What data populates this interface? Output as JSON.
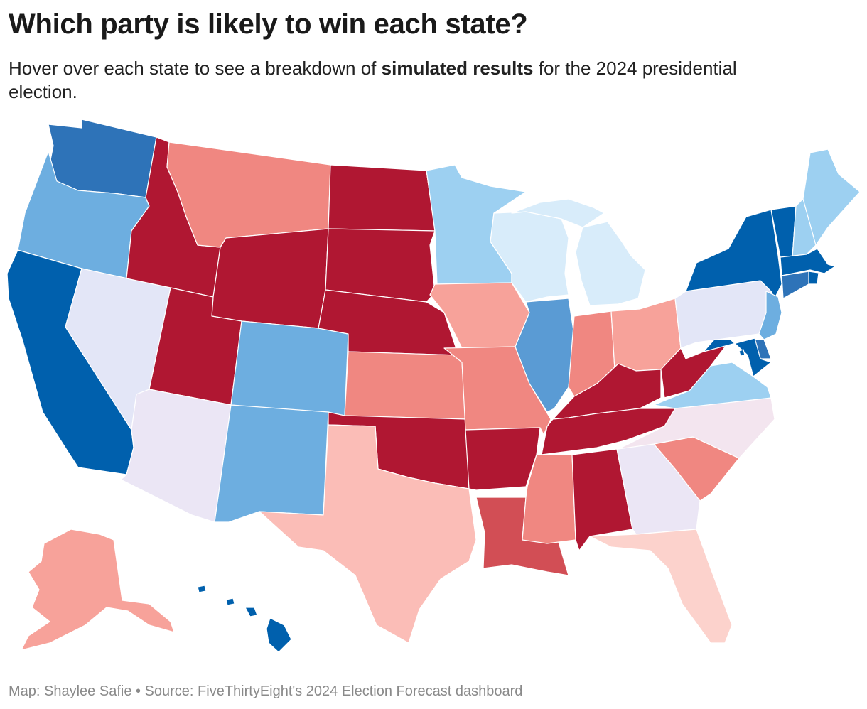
{
  "header": {
    "title": "Which party is likely to win each state?",
    "subtitle_pre": "Hover over each state to see a breakdown of ",
    "subtitle_bold": "simulated results",
    "subtitle_post": " for the 2024 presidential election."
  },
  "footer": {
    "credit": "Map: Shaylee Safie • Source: FiveThirtyEight's 2024 Election Forecast dashboard"
  },
  "palette": {
    "solid_d": "#0060ad",
    "likely_d": "#2e73b8",
    "lean_d2": "#5a9bd4",
    "lean_d": "#6daee0",
    "tilt_d": "#9dd0f1",
    "weak_d": "#d8ecfa",
    "tossup_blue": "#e3e6f7",
    "tossup": "#ebe6f5",
    "tossup_pink": "#f3e5ef",
    "weak_r": "#fcd2cc",
    "tilt_r": "#fbbdb7",
    "lean_r": "#f7a29a",
    "likely_r": "#f08781",
    "strong_r": "#d24e55",
    "solid_r": "#b01732"
  },
  "states": [
    {
      "code": "WA",
      "name": "Washington",
      "category": "likely_d"
    },
    {
      "code": "OR",
      "name": "Oregon",
      "category": "lean_d"
    },
    {
      "code": "CA",
      "name": "California",
      "category": "solid_d"
    },
    {
      "code": "NV",
      "name": "Nevada",
      "category": "tossup_blue"
    },
    {
      "code": "ID",
      "name": "Idaho",
      "category": "solid_r"
    },
    {
      "code": "MT",
      "name": "Montana",
      "category": "likely_r"
    },
    {
      "code": "WY",
      "name": "Wyoming",
      "category": "solid_r"
    },
    {
      "code": "UT",
      "name": "Utah",
      "category": "solid_r"
    },
    {
      "code": "AZ",
      "name": "Arizona",
      "category": "tossup"
    },
    {
      "code": "CO",
      "name": "Colorado",
      "category": "lean_d"
    },
    {
      "code": "NM",
      "name": "New Mexico",
      "category": "lean_d"
    },
    {
      "code": "ND",
      "name": "North Dakota",
      "category": "solid_r"
    },
    {
      "code": "SD",
      "name": "South Dakota",
      "category": "solid_r"
    },
    {
      "code": "NE",
      "name": "Nebraska",
      "category": "solid_r"
    },
    {
      "code": "KS",
      "name": "Kansas",
      "category": "likely_r"
    },
    {
      "code": "OK",
      "name": "Oklahoma",
      "category": "solid_r"
    },
    {
      "code": "TX",
      "name": "Texas",
      "category": "tilt_r"
    },
    {
      "code": "MN",
      "name": "Minnesota",
      "category": "tilt_d"
    },
    {
      "code": "IA",
      "name": "Iowa",
      "category": "lean_r"
    },
    {
      "code": "MO",
      "name": "Missouri",
      "category": "likely_r"
    },
    {
      "code": "AR",
      "name": "Arkansas",
      "category": "solid_r"
    },
    {
      "code": "LA",
      "name": "Louisiana",
      "category": "strong_r"
    },
    {
      "code": "WI",
      "name": "Wisconsin",
      "category": "weak_d"
    },
    {
      "code": "IL",
      "name": "Illinois",
      "category": "lean_d2"
    },
    {
      "code": "MI",
      "name": "Michigan",
      "category": "weak_d"
    },
    {
      "code": "IN",
      "name": "Indiana",
      "category": "likely_r"
    },
    {
      "code": "OH",
      "name": "Ohio",
      "category": "lean_r"
    },
    {
      "code": "KY",
      "name": "Kentucky",
      "category": "solid_r"
    },
    {
      "code": "TN",
      "name": "Tennessee",
      "category": "solid_r"
    },
    {
      "code": "MS",
      "name": "Mississippi",
      "category": "likely_r"
    },
    {
      "code": "AL",
      "name": "Alabama",
      "category": "solid_r"
    },
    {
      "code": "GA",
      "name": "Georgia",
      "category": "tossup"
    },
    {
      "code": "FL",
      "name": "Florida",
      "category": "weak_r"
    },
    {
      "code": "SC",
      "name": "South Carolina",
      "category": "likely_r"
    },
    {
      "code": "NC",
      "name": "North Carolina",
      "category": "tossup_pink"
    },
    {
      "code": "VA",
      "name": "Virginia",
      "category": "tilt_d"
    },
    {
      "code": "WV",
      "name": "West Virginia",
      "category": "solid_r"
    },
    {
      "code": "PA",
      "name": "Pennsylvania",
      "category": "tossup_blue"
    },
    {
      "code": "NY",
      "name": "New York",
      "category": "solid_d"
    },
    {
      "code": "VT",
      "name": "Vermont",
      "category": "solid_d"
    },
    {
      "code": "NH",
      "name": "New Hampshire",
      "category": "tilt_d"
    },
    {
      "code": "ME",
      "name": "Maine",
      "category": "tilt_d"
    },
    {
      "code": "MA",
      "name": "Massachusetts",
      "category": "solid_d"
    },
    {
      "code": "RI",
      "name": "Rhode Island",
      "category": "solid_d"
    },
    {
      "code": "CT",
      "name": "Connecticut",
      "category": "likely_d"
    },
    {
      "code": "NJ",
      "name": "New Jersey",
      "category": "lean_d"
    },
    {
      "code": "DE",
      "name": "Delaware",
      "category": "likely_d"
    },
    {
      "code": "MD",
      "name": "Maryland",
      "category": "solid_d"
    },
    {
      "code": "DC",
      "name": "District of Columbia",
      "category": "solid_d"
    },
    {
      "code": "AK",
      "name": "Alaska",
      "category": "lean_r"
    },
    {
      "code": "HI",
      "name": "Hawaii",
      "category": "solid_d"
    }
  ]
}
